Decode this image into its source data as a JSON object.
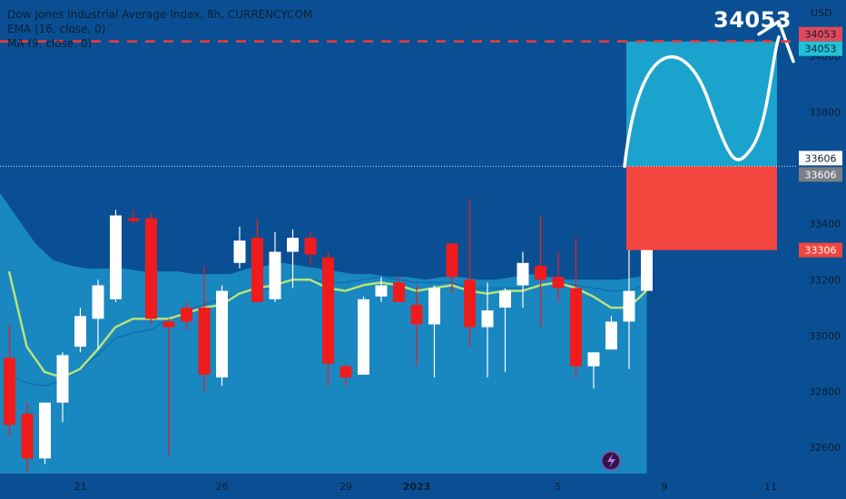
{
  "header": {
    "title": "Dow Jones Industrial Average Index, 8h, CURRENCYCOM",
    "indicator1": "EMA (16, close, 0)",
    "indicator2": "MA (9, close, 0)"
  },
  "callout_value": "34053",
  "colors": {
    "background": "#0a4f93",
    "up_candle": "#ffffff",
    "down_candle": "#ee1c1c",
    "ema_band": "#1a8ac2",
    "ma_line": "#b6e37b",
    "target_box": "#1aa3cd",
    "stop_box": "#f2453d",
    "dashed_line": "#ef3c3c"
  },
  "chart_data": {
    "type": "candlestick",
    "title": "Dow Jones Industrial Average Index, 8h, CURRENCYCOM",
    "currency": "USD",
    "ylim": [
      32500,
      34150
    ],
    "y_ticks": [
      "34000",
      "33800",
      "33400",
      "33200",
      "33000",
      "32800",
      "32600"
    ],
    "x_ticks": [
      {
        "label": "21",
        "index": 4
      },
      {
        "label": "26",
        "index": 12
      },
      {
        "label": "29",
        "index": 19
      },
      {
        "label": "2023",
        "index": 23
      },
      {
        "label": "5",
        "index": 31
      },
      {
        "label": "9",
        "index": 37
      },
      {
        "label": "11",
        "index": 43
      }
    ],
    "candles": [
      {
        "o": 32920,
        "h": 33040,
        "l": 32640,
        "c": 32680
      },
      {
        "o": 32720,
        "h": 32760,
        "l": 32510,
        "c": 32560
      },
      {
        "o": 32560,
        "h": 32760,
        "l": 32540,
        "c": 32760
      },
      {
        "o": 32760,
        "h": 32940,
        "l": 32690,
        "c": 32930
      },
      {
        "o": 32960,
        "h": 33100,
        "l": 32940,
        "c": 33070
      },
      {
        "o": 33060,
        "h": 33200,
        "l": 32950,
        "c": 33180
      },
      {
        "o": 33130,
        "h": 33450,
        "l": 33120,
        "c": 33430
      },
      {
        "o": 33420,
        "h": 33450,
        "l": 33400,
        "c": 33410
      },
      {
        "o": 33420,
        "h": 33440,
        "l": 33040,
        "c": 33060
      },
      {
        "o": 33050,
        "h": 33060,
        "l": 32570,
        "c": 33030
      },
      {
        "o": 33100,
        "h": 33120,
        "l": 33020,
        "c": 33050
      },
      {
        "o": 33100,
        "h": 33250,
        "l": 32800,
        "c": 32860
      },
      {
        "o": 32850,
        "h": 33180,
        "l": 32820,
        "c": 33160
      },
      {
        "o": 33260,
        "h": 33390,
        "l": 33240,
        "c": 33340
      },
      {
        "o": 33350,
        "h": 33420,
        "l": 33120,
        "c": 33120
      },
      {
        "o": 33130,
        "h": 33370,
        "l": 33120,
        "c": 33300
      },
      {
        "o": 33300,
        "h": 33380,
        "l": 33170,
        "c": 33350
      },
      {
        "o": 33350,
        "h": 33370,
        "l": 33250,
        "c": 33290
      },
      {
        "o": 33280,
        "h": 33300,
        "l": 32820,
        "c": 32900
      },
      {
        "o": 32890,
        "h": 32900,
        "l": 32820,
        "c": 32850
      },
      {
        "o": 32860,
        "h": 33140,
        "l": 32860,
        "c": 33130
      },
      {
        "o": 33140,
        "h": 33210,
        "l": 33120,
        "c": 33180
      },
      {
        "o": 33190,
        "h": 33210,
        "l": 33120,
        "c": 33120
      },
      {
        "o": 33110,
        "h": 33180,
        "l": 32890,
        "c": 33040
      },
      {
        "o": 33040,
        "h": 33180,
        "l": 32850,
        "c": 33170
      },
      {
        "o": 33330,
        "h": 33330,
        "l": 33150,
        "c": 33210
      },
      {
        "o": 33200,
        "h": 33490,
        "l": 32960,
        "c": 33030
      },
      {
        "o": 33030,
        "h": 33190,
        "l": 32850,
        "c": 33090
      },
      {
        "o": 33100,
        "h": 33170,
        "l": 32870,
        "c": 33160
      },
      {
        "o": 33180,
        "h": 33300,
        "l": 33100,
        "c": 33260
      },
      {
        "o": 33250,
        "h": 33430,
        "l": 33030,
        "c": 33200
      },
      {
        "o": 33210,
        "h": 33300,
        "l": 33120,
        "c": 33170
      },
      {
        "o": 33170,
        "h": 33350,
        "l": 32850,
        "c": 32890
      },
      {
        "o": 32890,
        "h": 32940,
        "l": 32810,
        "c": 32940
      },
      {
        "o": 32950,
        "h": 33070,
        "l": 32950,
        "c": 33050
      },
      {
        "o": 33050,
        "h": 33320,
        "l": 32880,
        "c": 33160
      },
      {
        "o": 33160,
        "h": 33690,
        "l": 33160,
        "c": 33600
      }
    ],
    "ema16": [
      32860,
      32830,
      32820,
      32840,
      32880,
      32930,
      32990,
      33010,
      33020,
      33060,
      33090,
      33110,
      33130,
      33150,
      33160,
      33170,
      33200,
      33200,
      33190,
      33190,
      33200,
      33210,
      33200,
      33190,
      33190,
      33190,
      33170,
      33170,
      33170,
      33170,
      33180,
      33190,
      33180,
      33170,
      33160,
      33160,
      33180
    ],
    "ema_band_upper": [
      33510,
      33420,
      33330,
      33270,
      33250,
      33240,
      33240,
      33240,
      33230,
      33230,
      33230,
      33220,
      33220,
      33220,
      33240,
      33250,
      33260,
      33250,
      33240,
      33230,
      33220,
      33220,
      33210,
      33210,
      33200,
      33210,
      33210,
      33200,
      33200,
      33210,
      33220,
      33210,
      33200,
      33200,
      33200,
      33200,
      33210
    ],
    "ma9": [
      33230,
      32960,
      32870,
      32850,
      32880,
      32950,
      33030,
      33060,
      33060,
      33060,
      33080,
      33100,
      33110,
      33150,
      33170,
      33180,
      33200,
      33200,
      33170,
      33160,
      33180,
      33190,
      33180,
      33160,
      33170,
      33180,
      33160,
      33150,
      33160,
      33160,
      33180,
      33190,
      33170,
      33140,
      33100,
      33100,
      33160
    ],
    "position": {
      "entry": 33606,
      "target": 34053,
      "stop": 33306,
      "target_label": "34053",
      "entry_label": "33606",
      "stop_label": "33306"
    },
    "price_labels": [
      "34053",
      "34053",
      "33606",
      "33606",
      "33306"
    ],
    "axis_label_usd": "USD"
  }
}
